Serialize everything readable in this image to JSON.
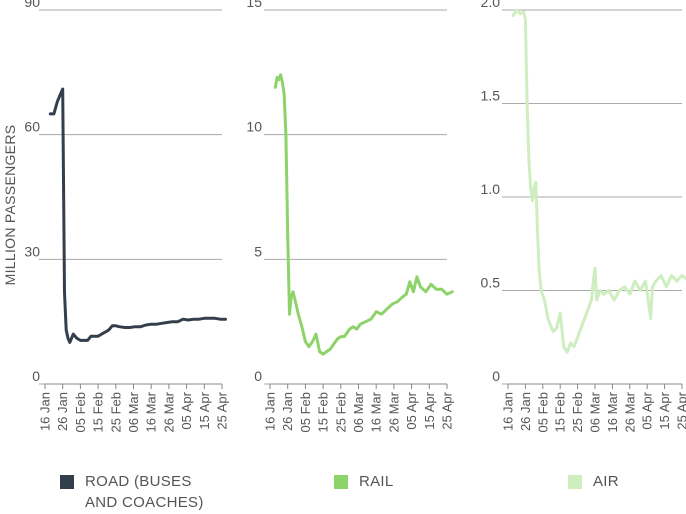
{
  "chart_data": {
    "type": "line",
    "ylabel": "MILLION PASSENGERS",
    "x_ticks": [
      "16 Jan",
      "26 Jan",
      "05 Feb",
      "15 Feb",
      "25 Feb",
      "06 Mar",
      "16 Mar",
      "26 Mar",
      "05 Apr",
      "15 Apr",
      "25 Apr"
    ],
    "panels": [
      {
        "name": "ROAD (BUSES\nAND COACHES)",
        "color": "#333f4c",
        "ylim": [
          0,
          90
        ],
        "yticks": [
          "0",
          "30",
          "60",
          "90"
        ],
        "ytick_values": [
          0,
          30,
          60,
          90
        ],
        "x": [
          "2020-01-19",
          "2020-01-21",
          "2020-01-23",
          "2020-01-25",
          "2020-01-26",
          "2020-01-27",
          "2020-01-28",
          "2020-01-29",
          "2020-01-30",
          "2020-02-01",
          "2020-02-03",
          "2020-02-05",
          "2020-02-07",
          "2020-02-09",
          "2020-02-11",
          "2020-02-13",
          "2020-02-15",
          "2020-02-17",
          "2020-02-19",
          "2020-02-21",
          "2020-02-23",
          "2020-02-25",
          "2020-02-27",
          "2020-03-01",
          "2020-03-04",
          "2020-03-07",
          "2020-03-10",
          "2020-03-13",
          "2020-03-16",
          "2020-03-19",
          "2020-03-22",
          "2020-03-25",
          "2020-03-28",
          "2020-03-31",
          "2020-04-03",
          "2020-04-06",
          "2020-04-09",
          "2020-04-12",
          "2020-04-15",
          "2020-04-18",
          "2020-04-21",
          "2020-04-24",
          "2020-04-27"
        ],
        "y": [
          65,
          65,
          68,
          70,
          71,
          22,
          13,
          11,
          10,
          12,
          11,
          10.5,
          10.5,
          10.5,
          11.5,
          11.5,
          11.5,
          12,
          12.5,
          13,
          14,
          14,
          13.8,
          13.6,
          13.6,
          13.8,
          13.8,
          14.2,
          14.4,
          14.4,
          14.6,
          14.8,
          15,
          15,
          15.6,
          15.4,
          15.6,
          15.6,
          15.8,
          15.8,
          15.8,
          15.6,
          15.6
        ]
      },
      {
        "name": "RAIL",
        "color": "#8ed36a",
        "ylim": [
          0,
          15
        ],
        "yticks": [
          "0",
          "5",
          "10",
          "15"
        ],
        "ytick_values": [
          0,
          5,
          10,
          15
        ],
        "x": [
          "2020-01-19",
          "2020-01-20",
          "2020-01-21",
          "2020-01-22",
          "2020-01-23",
          "2020-01-24",
          "2020-01-25",
          "2020-01-26",
          "2020-01-27",
          "2020-01-28",
          "2020-01-29",
          "2020-01-30",
          "2020-02-01",
          "2020-02-03",
          "2020-02-05",
          "2020-02-07",
          "2020-02-09",
          "2020-02-11",
          "2020-02-13",
          "2020-02-15",
          "2020-02-17",
          "2020-02-19",
          "2020-02-21",
          "2020-02-23",
          "2020-02-25",
          "2020-02-27",
          "2020-03-01",
          "2020-03-03",
          "2020-03-05",
          "2020-03-07",
          "2020-03-10",
          "2020-03-13",
          "2020-03-16",
          "2020-03-19",
          "2020-03-22",
          "2020-03-25",
          "2020-03-28",
          "2020-03-31",
          "2020-04-02",
          "2020-04-04",
          "2020-04-06",
          "2020-04-08",
          "2020-04-10",
          "2020-04-13",
          "2020-04-16",
          "2020-04-19",
          "2020-04-22",
          "2020-04-25",
          "2020-04-28"
        ],
        "y": [
          11.9,
          12.3,
          12.2,
          12.4,
          12.1,
          11.6,
          10.0,
          6.0,
          2.8,
          3.5,
          3.7,
          3.4,
          2.8,
          2.3,
          1.7,
          1.5,
          1.7,
          2.0,
          1.3,
          1.2,
          1.3,
          1.4,
          1.6,
          1.8,
          1.9,
          1.9,
          2.2,
          2.3,
          2.2,
          2.4,
          2.5,
          2.6,
          2.9,
          2.8,
          3.0,
          3.2,
          3.3,
          3.5,
          3.6,
          4.1,
          3.7,
          4.3,
          3.9,
          3.7,
          4.0,
          3.8,
          3.8,
          3.6,
          3.7
        ]
      },
      {
        "name": "AIR",
        "color": "#cfeec0",
        "ylim": [
          0,
          2.0
        ],
        "yticks": [
          "0",
          "0.5",
          "1.0",
          "1.5",
          "2.0"
        ],
        "ytick_values": [
          0,
          0.5,
          1.0,
          1.5,
          2.0
        ],
        "x": [
          "2020-01-19",
          "2020-01-21",
          "2020-01-23",
          "2020-01-25",
          "2020-01-26",
          "2020-01-27",
          "2020-01-28",
          "2020-01-29",
          "2020-01-30",
          "2020-01-31",
          "2020-02-01",
          "2020-02-02",
          "2020-02-03",
          "2020-02-04",
          "2020-02-06",
          "2020-02-08",
          "2020-02-10",
          "2020-02-11",
          "2020-02-13",
          "2020-02-15",
          "2020-02-17",
          "2020-02-19",
          "2020-02-21",
          "2020-02-23",
          "2020-02-25",
          "2020-02-27",
          "2020-02-29",
          "2020-03-02",
          "2020-03-04",
          "2020-03-05",
          "2020-03-06",
          "2020-03-07",
          "2020-03-09",
          "2020-03-11",
          "2020-03-14",
          "2020-03-17",
          "2020-03-20",
          "2020-03-23",
          "2020-03-26",
          "2020-03-29",
          "2020-04-01",
          "2020-04-04",
          "2020-04-06",
          "2020-04-07",
          "2020-04-08",
          "2020-04-10",
          "2020-04-13",
          "2020-04-16",
          "2020-04-19",
          "2020-04-22",
          "2020-04-25",
          "2020-04-28"
        ],
        "y": [
          1.97,
          2.0,
          1.98,
          1.99,
          1.95,
          1.5,
          1.2,
          1.05,
          0.98,
          1.05,
          1.08,
          0.8,
          0.6,
          0.5,
          0.45,
          0.35,
          0.3,
          0.28,
          0.3,
          0.38,
          0.2,
          0.17,
          0.22,
          0.2,
          0.25,
          0.3,
          0.35,
          0.4,
          0.45,
          0.55,
          0.62,
          0.45,
          0.5,
          0.48,
          0.5,
          0.45,
          0.5,
          0.52,
          0.48,
          0.55,
          0.5,
          0.55,
          0.42,
          0.35,
          0.52,
          0.55,
          0.58,
          0.52,
          0.58,
          0.55,
          0.58,
          0.56
        ]
      }
    ]
  }
}
